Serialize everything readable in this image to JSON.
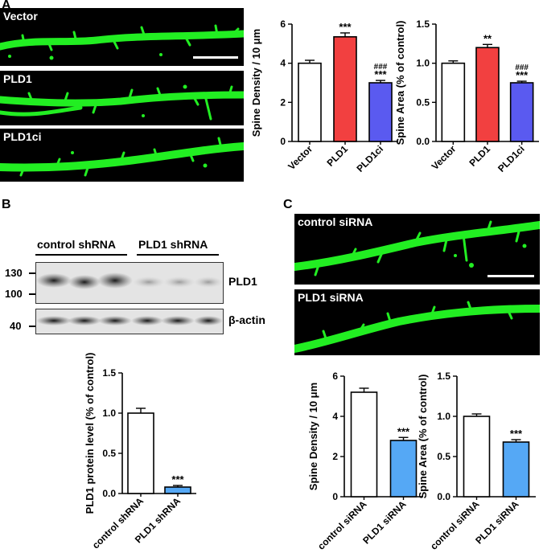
{
  "panels": {
    "A": "A",
    "B": "B",
    "C": "C"
  },
  "micrographs": {
    "a1": "Vector",
    "a2": "PLD1",
    "a3": "PLD1ci",
    "c1": "control siRNA",
    "c2": "PLD1 siRNA"
  },
  "blot": {
    "group_left": "control shRNA",
    "group_right": "PLD1 shRNA",
    "mw_130": "130",
    "mw_100": "100",
    "mw_40": "40",
    "band_top": "PLD1",
    "band_bottom": "β-actin"
  },
  "chart_data": [
    {
      "id": "A-density",
      "type": "bar",
      "categories": [
        "Vector",
        "PLD1",
        "PLD1ci"
      ],
      "values": [
        4.0,
        5.35,
        3.0
      ],
      "errors": [
        0.15,
        0.2,
        0.12
      ],
      "colors": [
        "#ffffff",
        "#f24040",
        "#5a5af0"
      ],
      "annotations": [
        [
          "",
          ""
        ],
        [
          "",
          "***"
        ],
        [
          "###",
          "***"
        ]
      ],
      "ylabel": "Spine Density / 10 μm",
      "ylim": [
        0,
        6
      ],
      "yticks": [
        0,
        2,
        4,
        6
      ],
      "ytick_labels": [
        "0",
        "2",
        "4",
        "6"
      ]
    },
    {
      "id": "A-area",
      "type": "bar",
      "categories": [
        "Vector",
        "PLD1",
        "PLD1ci"
      ],
      "values": [
        1.0,
        1.2,
        0.75
      ],
      "errors": [
        0.03,
        0.04,
        0.02
      ],
      "colors": [
        "#ffffff",
        "#f24040",
        "#5a5af0"
      ],
      "annotations": [
        [
          "",
          ""
        ],
        [
          "",
          "**"
        ],
        [
          "###",
          "***"
        ]
      ],
      "ylabel": "Spine Area (% of control)",
      "ylim": [
        0,
        1.5
      ],
      "yticks": [
        0,
        0.5,
        1.0,
        1.5
      ],
      "ytick_labels": [
        "0.0",
        "0.5",
        "1.0",
        "1.5"
      ]
    },
    {
      "id": "B-protein",
      "type": "bar",
      "categories": [
        "control shRNA",
        "PLD1 shRNA"
      ],
      "values": [
        1.0,
        0.08
      ],
      "errors": [
        0.06,
        0.02
      ],
      "colors": [
        "#ffffff",
        "#55a8f5"
      ],
      "annotations": [
        [
          "",
          ""
        ],
        [
          "",
          "***"
        ]
      ],
      "ylabel": "PLD1 protein level (% of control)",
      "ylim": [
        0,
        1.5
      ],
      "yticks": [
        0,
        0.5,
        1.0,
        1.5
      ],
      "ytick_labels": [
        "0.0",
        "0.5",
        "1.0",
        "1.5"
      ]
    },
    {
      "id": "C-density",
      "type": "bar",
      "categories": [
        "control siRNA",
        "PLD1 siRNA"
      ],
      "values": [
        5.2,
        2.8
      ],
      "errors": [
        0.2,
        0.15
      ],
      "colors": [
        "#ffffff",
        "#55a8f5"
      ],
      "annotations": [
        [
          "",
          ""
        ],
        [
          "",
          "***"
        ]
      ],
      "ylabel": "Spine Density / 10 μm",
      "ylim": [
        0,
        6
      ],
      "yticks": [
        0,
        2,
        4,
        6
      ],
      "ytick_labels": [
        "0",
        "2",
        "4",
        "6"
      ]
    },
    {
      "id": "C-area",
      "type": "bar",
      "categories": [
        "control siRNA",
        "PLD1 siRNA"
      ],
      "values": [
        1.0,
        0.68
      ],
      "errors": [
        0.03,
        0.03
      ],
      "colors": [
        "#ffffff",
        "#55a8f5"
      ],
      "annotations": [
        [
          "",
          ""
        ],
        [
          "",
          "***"
        ]
      ],
      "ylabel": "Spine Area (% of control)",
      "ylim": [
        0,
        1.5
      ],
      "yticks": [
        0,
        0.5,
        1.0,
        1.5
      ],
      "ytick_labels": [
        "0.0",
        "0.5",
        "1.0",
        "1.5"
      ]
    }
  ]
}
